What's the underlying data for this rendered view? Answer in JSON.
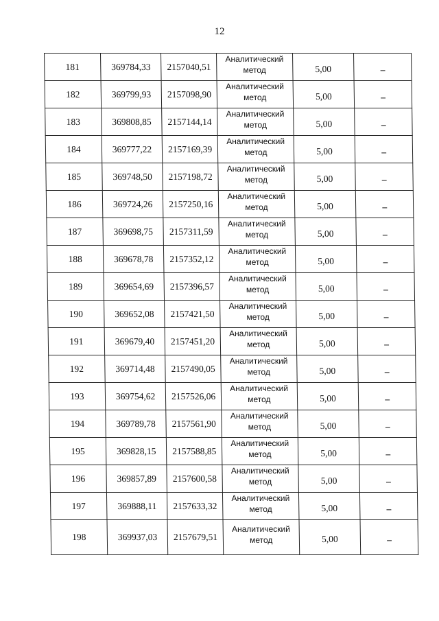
{
  "page_number": "12",
  "rows": [
    {
      "n": "181",
      "x": "369784,33",
      "y": "2157040,51",
      "method": "Аналитический метод",
      "accuracy": "5,00",
      "note": "–"
    },
    {
      "n": "182",
      "x": "369799,93",
      "y": "2157098,90",
      "method": "Аналитический метод",
      "accuracy": "5,00",
      "note": "–"
    },
    {
      "n": "183",
      "x": "369808,85",
      "y": "2157144,14",
      "method": "Аналитический метод",
      "accuracy": "5,00",
      "note": "–"
    },
    {
      "n": "184",
      "x": "369777,22",
      "y": "2157169,39",
      "method": "Аналитический метод",
      "accuracy": "5,00",
      "note": "–"
    },
    {
      "n": "185",
      "x": "369748,50",
      "y": "2157198,72",
      "method": "Аналитический метод",
      "accuracy": "5,00",
      "note": "–"
    },
    {
      "n": "186",
      "x": "369724,26",
      "y": "2157250,16",
      "method": "Аналитический метод",
      "accuracy": "5,00",
      "note": "–"
    },
    {
      "n": "187",
      "x": "369698,75",
      "y": "2157311,59",
      "method": "Аналитический метод",
      "accuracy": "5,00",
      "note": "–"
    },
    {
      "n": "188",
      "x": "369678,78",
      "y": "2157352,12",
      "method": "Аналитический метод",
      "accuracy": "5,00",
      "note": "–"
    },
    {
      "n": "189",
      "x": "369654,69",
      "y": "2157396,57",
      "method": "Аналитический метод",
      "accuracy": "5,00",
      "note": "–"
    },
    {
      "n": "190",
      "x": "369652,08",
      "y": "2157421,50",
      "method": "Аналитический метод",
      "accuracy": "5,00",
      "note": "–"
    },
    {
      "n": "191",
      "x": "369679,40",
      "y": "2157451,20",
      "method": "Аналитический метод",
      "accuracy": "5,00",
      "note": "–"
    },
    {
      "n": "192",
      "x": "369714,48",
      "y": "2157490,05",
      "method": "Аналитический метод",
      "accuracy": "5,00",
      "note": "–"
    },
    {
      "n": "193",
      "x": "369754,62",
      "y": "2157526,06",
      "method": "Аналитический метод",
      "accuracy": "5,00",
      "note": "–"
    },
    {
      "n": "194",
      "x": "369789,78",
      "y": "2157561,90",
      "method": "Аналитический метод",
      "accuracy": "5,00",
      "note": "–"
    },
    {
      "n": "195",
      "x": "369828,15",
      "y": "2157588,85",
      "method": "Аналитический метод",
      "accuracy": "5,00",
      "note": "–"
    },
    {
      "n": "196",
      "x": "369857,89",
      "y": "2157600,58",
      "method": "Аналитический метод",
      "accuracy": "5,00",
      "note": "–"
    },
    {
      "n": "197",
      "x": "369888,11",
      "y": "2157633,32",
      "method": "Аналитический метод",
      "accuracy": "5,00",
      "note": "–"
    },
    {
      "n": "198",
      "x": "369937,03",
      "y": "2157679,51",
      "method": "Аналитический метод",
      "accuracy": "5,00",
      "note": "–"
    }
  ]
}
